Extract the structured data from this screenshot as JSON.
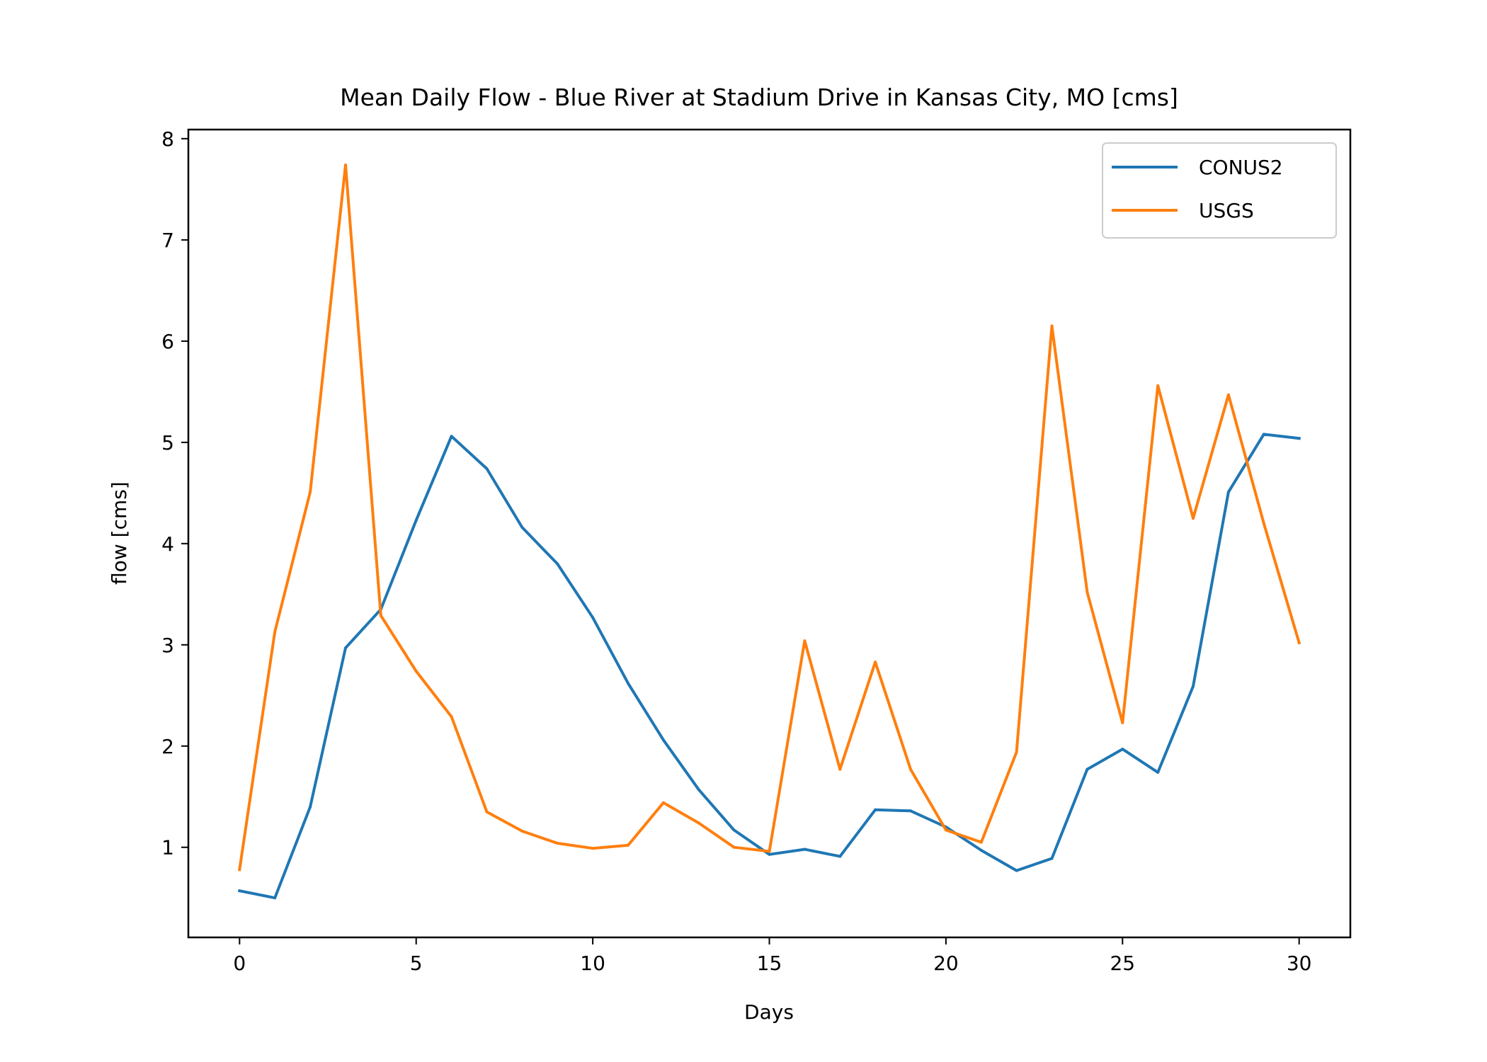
{
  "chart_data": {
    "type": "line",
    "title": "Mean Daily Flow - Blue River at Stadium Drive in Kansas City, MO [cms]",
    "xlabel": "Days",
    "ylabel": "flow [cms]",
    "xlim": [
      -1.45,
      31.45
    ],
    "ylim": [
      0.11,
      8.09
    ],
    "xticks": [
      0,
      5,
      10,
      15,
      20,
      25,
      30
    ],
    "yticks": [
      1,
      2,
      3,
      4,
      5,
      6,
      7,
      8
    ],
    "x": [
      0,
      1,
      2,
      3,
      4,
      5,
      6,
      7,
      8,
      9,
      10,
      11,
      12,
      13,
      14,
      15,
      16,
      17,
      18,
      19,
      20,
      21,
      22,
      23,
      24,
      25,
      26,
      27,
      28,
      29,
      30
    ],
    "series": [
      {
        "name": "CONUS2",
        "color": "#1f77b4",
        "values": [
          0.57,
          0.5,
          1.4,
          2.97,
          3.35,
          4.23,
          5.06,
          4.74,
          4.16,
          3.8,
          3.27,
          2.62,
          2.06,
          1.57,
          1.17,
          0.93,
          0.98,
          0.91,
          1.37,
          1.36,
          1.2,
          0.97,
          0.77,
          0.89,
          1.77,
          1.97,
          1.74,
          2.59,
          4.51,
          5.08,
          5.04
        ]
      },
      {
        "name": "USGS",
        "color": "#ff7f0e",
        "values": [
          0.78,
          3.13,
          4.51,
          7.74,
          3.29,
          2.74,
          2.29,
          1.35,
          1.16,
          1.04,
          0.99,
          1.02,
          1.44,
          1.24,
          1.0,
          0.96,
          3.04,
          1.77,
          2.83,
          1.77,
          1.17,
          1.05,
          1.94,
          6.15,
          3.52,
          2.23,
          5.56,
          4.25,
          5.47,
          4.2,
          3.02
        ]
      }
    ],
    "legend_position": "top-right",
    "grid": false
  }
}
